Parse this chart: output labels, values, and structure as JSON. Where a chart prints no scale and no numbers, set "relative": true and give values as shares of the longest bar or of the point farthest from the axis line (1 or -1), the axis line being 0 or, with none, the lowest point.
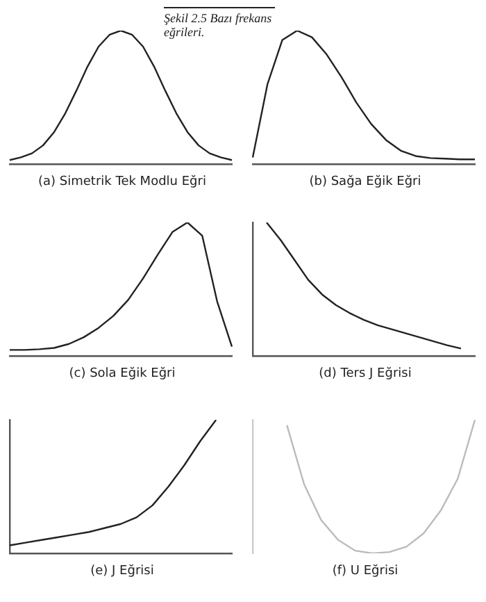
{
  "chart_data": [
    {
      "type": "line",
      "relative": true,
      "xlabel": "(a) Simetrik Tek Modlu Eğri",
      "annotations": [
        "Şekil 2.5 Bazı frekans eğrileri."
      ],
      "color": "#222222",
      "categories": [
        null,
        null,
        null,
        null,
        null,
        null,
        null,
        null,
        null,
        null,
        null,
        null,
        null,
        null,
        null,
        null,
        null,
        null,
        null,
        null,
        null
      ],
      "values": [
        0.03,
        0.05,
        0.08,
        0.14,
        0.24,
        0.38,
        0.55,
        0.73,
        0.88,
        0.97,
        1,
        0.97,
        0.88,
        0.73,
        0.55,
        0.38,
        0.24,
        0.14,
        0.08,
        0.05,
        0.03
      ]
    },
    {
      "type": "line",
      "relative": true,
      "xlabel": "(b) Sağa Eğik Eğri",
      "color": "#222222",
      "categories": [
        null,
        null,
        null,
        null,
        null,
        null,
        null,
        null,
        null,
        null,
        null,
        null,
        null,
        null,
        null,
        null
      ],
      "values": [
        0.05,
        0.6,
        0.93,
        1,
        0.95,
        0.82,
        0.65,
        0.46,
        0.3,
        0.18,
        0.1,
        0.06,
        0.045,
        0.04,
        0.035,
        0.035
      ]
    },
    {
      "type": "line",
      "relative": true,
      "xlabel": "(c) Sola Eğik Eğri",
      "color": "#222222",
      "categories": [
        null,
        null,
        null,
        null,
        null,
        null,
        null,
        null,
        null,
        null,
        null,
        null,
        null,
        null,
        null,
        null
      ],
      "values": [
        0.045,
        0.045,
        0.05,
        0.06,
        0.09,
        0.14,
        0.21,
        0.3,
        0.42,
        0.58,
        0.76,
        0.93,
        1,
        0.9,
        0.41,
        0.07
      ]
    },
    {
      "type": "line",
      "relative": true,
      "xlabel": "(d) Ters J Eğrisi",
      "color": "#222222",
      "categories": [
        null,
        null,
        null,
        null,
        null,
        null,
        null,
        null,
        null,
        null,
        null,
        null,
        null,
        null,
        null,
        null,
        null
      ],
      "values": [
        null,
        1,
        0.87,
        0.72,
        0.57,
        0.46,
        0.38,
        0.32,
        0.27,
        0.23,
        0.2,
        0.17,
        0.14,
        0.11,
        0.08,
        0.055,
        null
      ]
    },
    {
      "type": "line",
      "relative": true,
      "xlabel": "(e) J Eğrisi",
      "color": "#222222",
      "categories": [
        null,
        null,
        null,
        null,
        null,
        null,
        null,
        null,
        null,
        null,
        null,
        null,
        null,
        null,
        null
      ],
      "values": [
        0.06,
        0.08,
        0.1,
        0.12,
        0.14,
        0.16,
        0.19,
        0.22,
        0.27,
        0.36,
        0.5,
        0.66,
        0.84,
        1,
        null
      ]
    },
    {
      "type": "line",
      "relative": true,
      "xlabel": "(f) U Eğrisi",
      "color": "#bbbbbb",
      "categories": [
        null,
        null,
        null,
        null,
        null,
        null,
        null,
        null,
        null,
        null,
        null,
        null,
        null,
        null
      ],
      "values": [
        null,
        null,
        0.96,
        0.52,
        0.25,
        0.1,
        0.02,
        0,
        0.01,
        0.05,
        0.15,
        0.32,
        0.56,
        1
      ]
    }
  ]
}
